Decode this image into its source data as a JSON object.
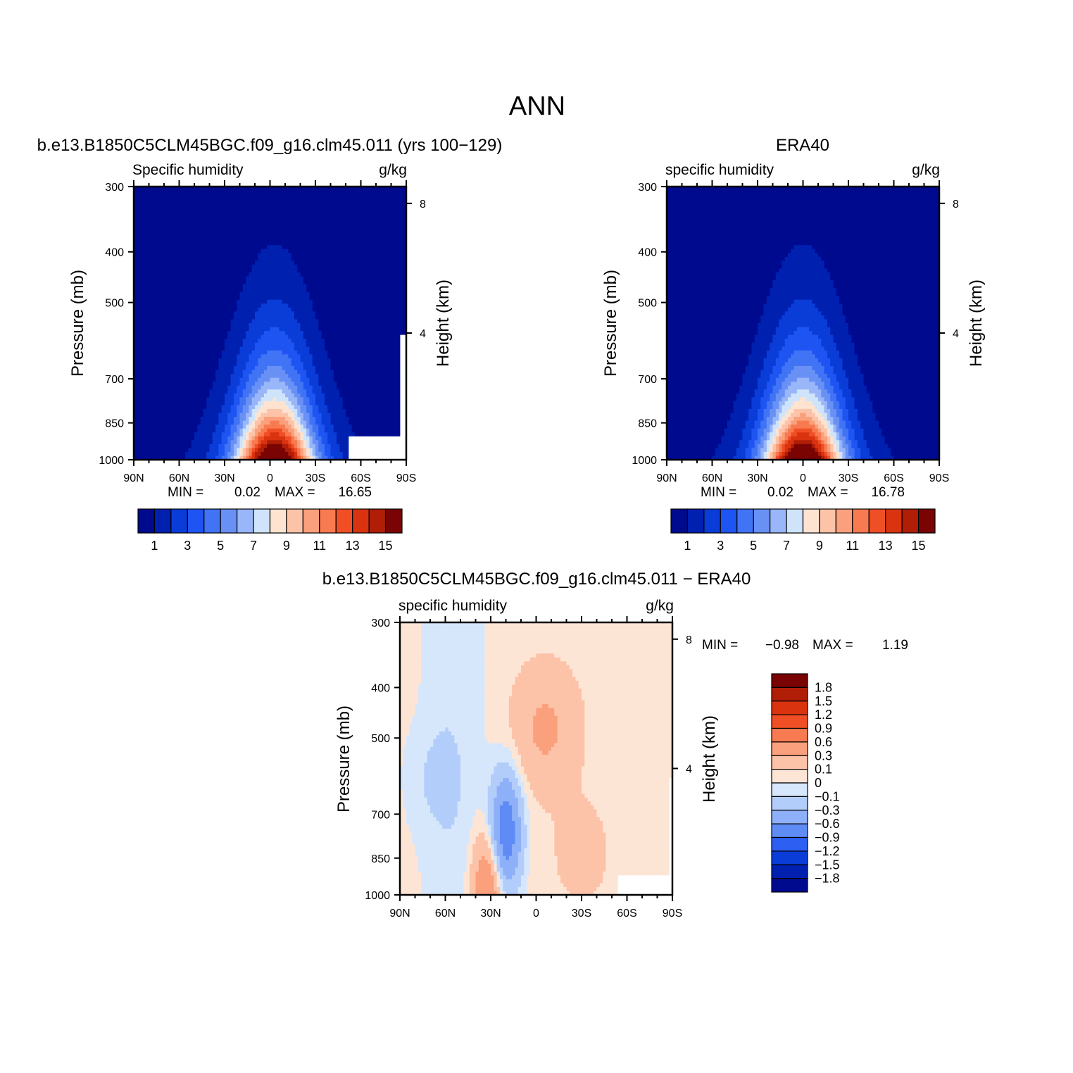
{
  "page_title": "ANN",
  "panels": [
    {
      "title": "b.e13.B1850C5CLM45BGC.f09_g16.clm45.011 (yrs 100−129)",
      "left_string": "Specific humidity",
      "right_string": "g/kg",
      "ylabel": "Pressure (mb)",
      "y2label": "Height (km)",
      "min_label": "MIN =",
      "min_value": "0.02",
      "max_label": "MAX =",
      "max_value": "16.65"
    },
    {
      "title": "ERA40",
      "left_string": "specific humidity",
      "right_string": "g/kg",
      "ylabel": "Pressure (mb)",
      "y2label": "Height (km)",
      "min_label": "MIN =",
      "min_value": "0.02",
      "max_label": "MAX =",
      "max_value": "16.78"
    },
    {
      "title": "b.e13.B1850C5CLM45BGC.f09_g16.clm45.011 − ERA40",
      "left_string": "specific humidity",
      "right_string": "g/kg",
      "ylabel": "Pressure (mb)",
      "y2label": "Height (km)",
      "min_label": "MIN =",
      "min_value": "−0.98",
      "max_label": "MAX =",
      "max_value": "1.19"
    }
  ],
  "chart_data": [
    {
      "type": "heatmap",
      "title": "b.e13.B1850C5CLM45BGC.f09_g16.clm45.011 (yrs 100−129)",
      "variable": "Specific humidity",
      "units": "g/kg",
      "xlabel": "",
      "ylabel": "Pressure (mb)",
      "y2label": "Height (km)",
      "x_ticks": [
        "90N",
        "60N",
        "30N",
        "0",
        "30S",
        "60S",
        "90S"
      ],
      "y_ticks": [
        "300",
        "400",
        "500",
        "700",
        "850",
        "1000"
      ],
      "y_tick_values": [
        300,
        400,
        500,
        700,
        850,
        1000
      ],
      "y2_ticks": [
        "8",
        "4"
      ],
      "y2_tick_values": [
        8,
        4
      ],
      "xlim": [
        90,
        -90
      ],
      "ylim": [
        1000,
        300
      ],
      "y_scale": "log",
      "levels": [
        1,
        2,
        3,
        4,
        5,
        6,
        7,
        8,
        9,
        10,
        11,
        12,
        13,
        14,
        15
      ],
      "colorbar_labels": [
        "1",
        "3",
        "5",
        "7",
        "9",
        "11",
        "13",
        "15"
      ],
      "min": 0.02,
      "max": 16.65,
      "peak": 16.65,
      "peak_lat": -3,
      "masked": "high southern latitudes near surface (Antarctic topography)"
    },
    {
      "type": "heatmap",
      "title": "ERA40",
      "variable": "specific humidity",
      "units": "g/kg",
      "xlabel": "",
      "ylabel": "Pressure (mb)",
      "y2label": "Height (km)",
      "x_ticks": [
        "90N",
        "60N",
        "30N",
        "0",
        "30S",
        "60S",
        "90S"
      ],
      "y_ticks": [
        "300",
        "400",
        "500",
        "700",
        "850",
        "1000"
      ],
      "y_tick_values": [
        300,
        400,
        500,
        700,
        850,
        1000
      ],
      "y2_ticks": [
        "8",
        "4"
      ],
      "y2_tick_values": [
        8,
        4
      ],
      "xlim": [
        90,
        -90
      ],
      "ylim": [
        1000,
        300
      ],
      "y_scale": "log",
      "levels": [
        1,
        2,
        3,
        4,
        5,
        6,
        7,
        8,
        9,
        10,
        11,
        12,
        13,
        14,
        15
      ],
      "colorbar_labels": [
        "1",
        "3",
        "5",
        "7",
        "9",
        "11",
        "13",
        "15"
      ],
      "min": 0.02,
      "max": 16.78,
      "peak": 16.78,
      "peak_lat": 0
    },
    {
      "type": "heatmap",
      "title": "b.e13.B1850C5CLM45BGC.f09_g16.clm45.011 − ERA40",
      "variable": "specific humidity",
      "units": "g/kg",
      "xlabel": "",
      "ylabel": "Pressure (mb)",
      "y2label": "Height (km)",
      "x_ticks": [
        "90N",
        "60N",
        "30N",
        "0",
        "30S",
        "60S",
        "90S"
      ],
      "y_ticks": [
        "300",
        "400",
        "500",
        "700",
        "850",
        "1000"
      ],
      "y_tick_values": [
        300,
        400,
        500,
        700,
        850,
        1000
      ],
      "y2_ticks": [
        "8",
        "4"
      ],
      "y2_tick_values": [
        8,
        4
      ],
      "xlim": [
        90,
        -90
      ],
      "ylim": [
        1000,
        300
      ],
      "y_scale": "log",
      "levels": [
        -1.8,
        -1.5,
        -1.2,
        -0.9,
        -0.6,
        -0.3,
        -0.1,
        0,
        0.1,
        0.3,
        0.6,
        0.9,
        1.2,
        1.5,
        1.8
      ],
      "colorbar_labels": [
        "1.8",
        "1.5",
        "1.2",
        "0.9",
        "0.6",
        "0.3",
        "0.1",
        "0",
        "−0.1",
        "−0.3",
        "−0.6",
        "−0.9",
        "−1.2",
        "−1.5",
        "−1.8"
      ],
      "min": -0.98,
      "max": 1.19,
      "features": [
        {
          "lat": 20,
          "p": 760,
          "value": -0.9
        },
        {
          "lat": 32,
          "p": 980,
          "value": 0.6
        },
        {
          "lat": -6,
          "p": 480,
          "value": 0.3
        },
        {
          "lat": -30,
          "p": 830,
          "value": 0.1
        },
        {
          "lat": 70,
          "p": 600,
          "value": -0.1
        }
      ]
    }
  ],
  "colors": {
    "seq_palette": [
      "#000a8f",
      "#0020b0",
      "#0a3cd8",
      "#1e55f2",
      "#4173f5",
      "#6991f5",
      "#98b6f8",
      "#cfe4fb",
      "#fde3d0",
      "#fcc3a8",
      "#faa07c",
      "#f77a50",
      "#f04f26",
      "#d93310",
      "#b01e07",
      "#7a0403"
    ],
    "diff_palette_top_to_bottom": [
      "#7a0403",
      "#b01e07",
      "#d93310",
      "#f04f26",
      "#f77a50",
      "#faa07c",
      "#fcc3a8",
      "#fde5d6",
      "#d6e7fc",
      "#b3cdfb",
      "#8eb0f8",
      "#5f8bf5",
      "#2c5ff2",
      "#0a3cd8",
      "#0020b0",
      "#000a8f"
    ],
    "missing": "#ffffff"
  }
}
